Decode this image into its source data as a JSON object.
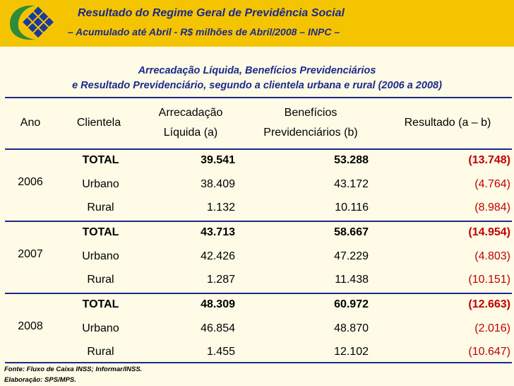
{
  "header": {
    "title": "Resultado do Regime Geral de Previdência Social",
    "subtitle": "– Acumulado até Abril - R$ milhões de Abril/2008 – INPC –"
  },
  "table_title": {
    "line1": "Arrecadação Líquida, Benefícios Previdenciários",
    "line2": "e Resultado Previdenciário, segundo a clientela urbana e rural (2006 a 2008)"
  },
  "columns": {
    "ano": "Ano",
    "clientela": "Clientela",
    "arrecadacao_l1": "Arrecadação",
    "arrecadacao_l2": "Líquida (a)",
    "beneficios_l1": "Benefícios",
    "beneficios_l2": "Previdenciários (b)",
    "resultado": "Resultado (a – b)"
  },
  "years": [
    {
      "year": "2006",
      "rows": [
        {
          "clientela": "TOTAL",
          "arrecadacao": "39.541",
          "beneficios": "53.288",
          "resultado": "(13.748)"
        },
        {
          "clientela": "Urbano",
          "arrecadacao": "38.409",
          "beneficios": "43.172",
          "resultado": "(4.764)"
        },
        {
          "clientela": "Rural",
          "arrecadacao": "1.132",
          "beneficios": "10.116",
          "resultado": "(8.984)"
        }
      ]
    },
    {
      "year": "2007",
      "rows": [
        {
          "clientela": "TOTAL",
          "arrecadacao": "43.713",
          "beneficios": "58.667",
          "resultado": "(14.954)"
        },
        {
          "clientela": "Urbano",
          "arrecadacao": "42.426",
          "beneficios": "47.229",
          "resultado": "(4.803)"
        },
        {
          "clientela": "Rural",
          "arrecadacao": "1.287",
          "beneficios": "11.438",
          "resultado": "(10.151)"
        }
      ]
    },
    {
      "year": "2008",
      "rows": [
        {
          "clientela": "TOTAL",
          "arrecadacao": "48.309",
          "beneficios": "60.972",
          "resultado": "(12.663)"
        },
        {
          "clientela": "Urbano",
          "arrecadacao": "46.854",
          "beneficios": "48.870",
          "resultado": "(2.016)"
        },
        {
          "clientela": "Rural",
          "arrecadacao": "1.455",
          "beneficios": "12.102",
          "resultado": "(10.647)"
        }
      ]
    }
  ],
  "footer": {
    "fonte": "Fonte: Fluxo de Caixa INSS; Informar/INSS.",
    "elaboracao": "Elaboração: SPS/MPS."
  },
  "colors": {
    "header_bg": "#f5c400",
    "title": "#1b2a8a",
    "negative": "#c00000",
    "logo_green": "#2e8b3a",
    "logo_blue": "#1b3a9a"
  }
}
